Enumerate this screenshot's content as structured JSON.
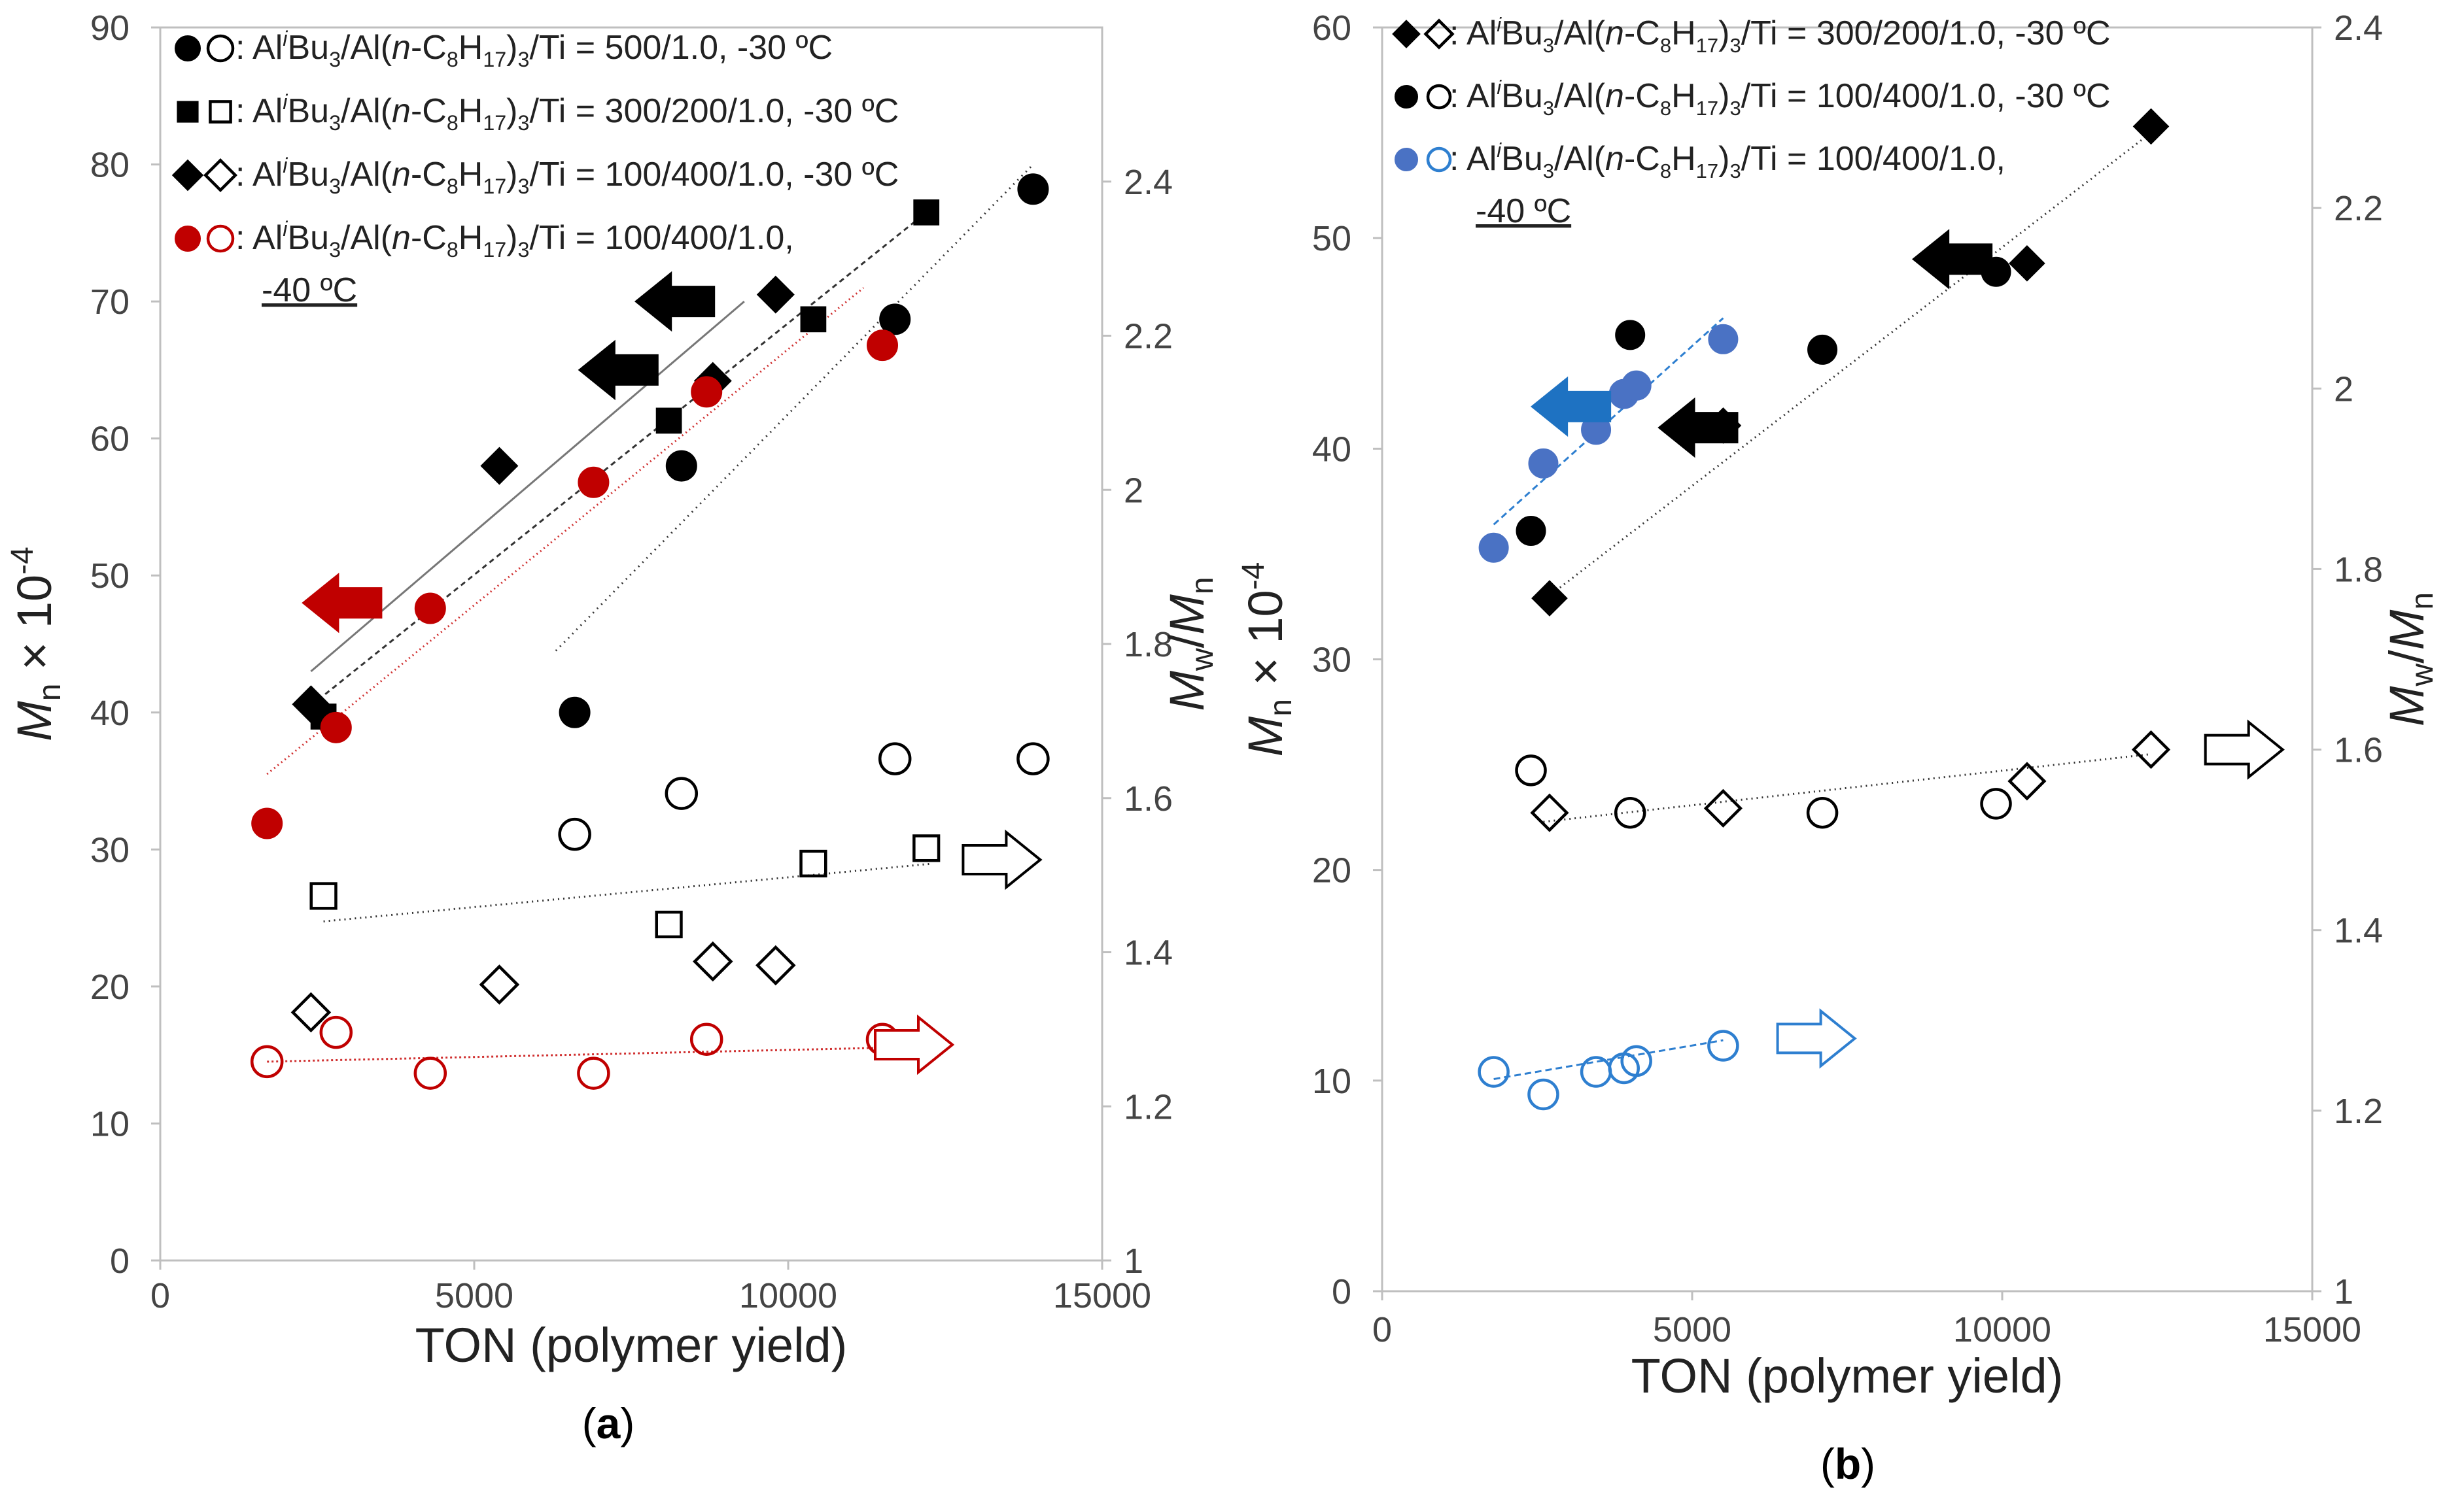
{
  "chart_data": [
    {
      "panel": "(a)",
      "type": "scatter",
      "panel_label": "(a)",
      "xlabel": "TON (polymer yield)",
      "ylabel_left": "M_n × 10^-4",
      "ylabel_right": "M_w/M_n",
      "xlim": [
        0,
        15000
      ],
      "ylim_left": [
        0,
        90
      ],
      "ylim_right": [
        1,
        2.6
      ],
      "x_ticks": [
        "0",
        "5000",
        "10000",
        "15000"
      ],
      "y_left_ticks": [
        "0",
        "10",
        "20",
        "30",
        "40",
        "50",
        "60",
        "70",
        "80",
        "90"
      ],
      "y_right_ticks": [
        "1",
        "1.2",
        "1.4",
        "1.6",
        "1.8",
        "2",
        "2.2",
        "2.4"
      ],
      "legend": [
        {
          "name": "circle-black",
          "symbols": "●○",
          "text": ": AliBu3/Al(n-C8H17)3/Ti = 500/1.0,  -30 ºC"
        },
        {
          "name": "square-black",
          "symbols": "■□",
          "text": ": AliBu3/Al(n-C8H17)3/Ti = 300/200/1.0,  -30 ºC"
        },
        {
          "name": "diamond-black",
          "symbols": "◆◇",
          "text": ": AliBu3/Al(n-C8H17)3/Ti = 100/400/1.0,  -30 ºC"
        },
        {
          "name": "circle-red",
          "symbols": "●○",
          "text": ": AliBu3/Al(n-C8H17)3/Ti = 100/400/1.0,",
          "text2": "-40 ºC"
        }
      ],
      "series": [
        {
          "name": "Mn 500/1.0 -30C",
          "axis": "left",
          "marker": "circle",
          "fill": "#000000",
          "stroke": "#000000",
          "x": [
            6600,
            8300,
            11700,
            13900
          ],
          "y": [
            40.0,
            58.0,
            68.7,
            78.2
          ],
          "trend": {
            "x": [
              6300,
              13900
            ],
            "y": [
              44.5,
              80.0
            ],
            "dash": "2,7",
            "color": "#333333"
          }
        },
        {
          "name": "Mn 300/200/1.0 -30C",
          "axis": "left",
          "marker": "square",
          "fill": "#000000",
          "stroke": "#000000",
          "x": [
            2600,
            8100,
            10400,
            12200
          ],
          "y": [
            39.7,
            61.3,
            68.7,
            76.5
          ],
          "trend": {
            "x": [
              2400,
              12200
            ],
            "y": [
              40.5,
              76.5
            ],
            "dash": "8,6",
            "color": "#333333"
          }
        },
        {
          "name": "Mn 100/400/1.0 -30C",
          "axis": "left",
          "marker": "diamond",
          "fill": "#000000",
          "stroke": "#000000",
          "x": [
            2400,
            5400,
            8800,
            9800
          ],
          "y": [
            40.6,
            58.0,
            64.2,
            70.5
          ],
          "trend": {
            "x": [
              2400,
              9300
            ],
            "y": [
              43.0,
              70.0
            ],
            "dash": "",
            "color": "#777777"
          }
        },
        {
          "name": "Mn 100/400/1.0 -40C",
          "axis": "left",
          "marker": "circle",
          "fill": "#c00000",
          "stroke": "#c00000",
          "x": [
            1700,
            2800,
            4300,
            6900,
            8700,
            11500
          ],
          "y": [
            31.9,
            38.9,
            47.6,
            56.8,
            63.4,
            66.8
          ],
          "trend": {
            "x": [
              1700,
              11200
            ],
            "y": [
              35.5,
              71.0
            ],
            "dash": "2,5",
            "color": "#d03030"
          }
        },
        {
          "name": "PDI 500/1.0 -30C",
          "axis": "right",
          "marker": "circle",
          "fill": "none",
          "stroke": "#000000",
          "x": [
            6600,
            8300,
            11700,
            13900
          ],
          "y": [
            1.553,
            1.606,
            1.651,
            1.651
          ]
        },
        {
          "name": "PDI 300/200/1.0 -30C",
          "axis": "right",
          "marker": "square",
          "fill": "none",
          "stroke": "#000000",
          "x": [
            2600,
            8100,
            10400,
            12200
          ],
          "y": [
            1.473,
            1.436,
            1.515,
            1.535
          ],
          "trend": {
            "x": [
              2600,
              12300
            ],
            "y": [
              1.44,
              1.515
            ],
            "dash": "2,6",
            "color": "#333333"
          }
        },
        {
          "name": "PDI 100/400/1.0 -30C",
          "axis": "right",
          "marker": "diamond",
          "fill": "none",
          "stroke": "#000000",
          "x": [
            2400,
            5400,
            8800,
            9800
          ],
          "y": [
            1.322,
            1.358,
            1.388,
            1.383
          ]
        },
        {
          "name": "PDI 100/400/1.0 -40C",
          "axis": "right",
          "marker": "circle",
          "fill": "none",
          "stroke": "#c00000",
          "x": [
            1700,
            2800,
            4300,
            6900,
            8700,
            11500
          ],
          "y": [
            1.258,
            1.296,
            1.243,
            1.243,
            1.287,
            1.287
          ],
          "trend": {
            "x": [
              1700,
              11500
            ],
            "y": [
              1.258,
              1.276
            ],
            "dash": "3,4",
            "color": "#d03030"
          }
        }
      ],
      "arrows": [
        {
          "dir": "left",
          "x": 2900,
          "y": 48.0,
          "axis": "left",
          "fill": "#c00000",
          "stroke": "#c00000"
        },
        {
          "dir": "left",
          "x": 7300,
          "y": 65.0,
          "axis": "left",
          "fill": "#000000",
          "stroke": "#000000"
        },
        {
          "dir": "left",
          "x": 8200,
          "y": 70.0,
          "axis": "left",
          "fill": "#000000",
          "stroke": "#000000"
        },
        {
          "dir": "right",
          "x": 13400,
          "y": 1.52,
          "axis": "right",
          "fill": "#ffffff",
          "stroke": "#000000"
        },
        {
          "dir": "right",
          "x": 12000,
          "y": 1.28,
          "axis": "right",
          "fill": "#ffffff",
          "stroke": "#c00000"
        }
      ]
    },
    {
      "panel": "(b)",
      "type": "scatter",
      "panel_label": "(b)",
      "xlabel": "TON (polymer yield)",
      "ylabel_left": "M_n × 10^-4",
      "ylabel_right": "M_w/M_n",
      "xlim": [
        0,
        15000
      ],
      "ylim_left": [
        0,
        60
      ],
      "ylim_right": [
        1,
        2.4
      ],
      "x_ticks": [
        "0",
        "5000",
        "10000",
        "15000"
      ],
      "y_left_ticks": [
        "0",
        "10",
        "20",
        "30",
        "40",
        "50",
        "60"
      ],
      "y_right_ticks": [
        "1",
        "1.2",
        "1.4",
        "1.6",
        "1.8",
        "2",
        "2.2",
        "2.4"
      ],
      "legend": [
        {
          "name": "diamond-black",
          "symbols": "◆◇",
          "text": ": AliBu3/Al(n-C8H17)3/Ti = 300/200/1.0,  -30 ºC"
        },
        {
          "name": "circle-black",
          "symbols": "●○",
          "text": ": AliBu3/Al(n-C8H17)3/Ti = 100/400/1.0,  -30 ºC"
        },
        {
          "name": "circle-blue",
          "symbols": "●○",
          "text": ": AliBu3/Al(n-C8H17)3/Ti = 100/400/1.0,",
          "text2": "-40 ºC"
        }
      ],
      "series": [
        {
          "name": "Mn 300/200/1.0 -30C",
          "axis": "left",
          "marker": "diamond",
          "fill": "#000000",
          "stroke": "#000000",
          "x": [
            2700,
            5500,
            10400,
            12400
          ],
          "y": [
            32.9,
            41.1,
            48.8,
            55.3
          ],
          "trend": {
            "x": [
              2600,
              12400
            ],
            "y": [
              32.8,
              55.0
            ],
            "dash": "2,6",
            "color": "#333333"
          }
        },
        {
          "name": "Mn 100/400/1.0 -30C",
          "axis": "left",
          "marker": "circle",
          "fill": "#000000",
          "stroke": "#000000",
          "x": [
            2400,
            4000,
            7100,
            9900
          ],
          "y": [
            36.1,
            45.4,
            44.7,
            48.4
          ]
        },
        {
          "name": "Mn 100/400/1.0 -40C",
          "axis": "left",
          "marker": "circle",
          "fill": "#4a72c4",
          "stroke": "#4a72c4",
          "x": [
            1800,
            2600,
            3450,
            3900,
            4100,
            5500
          ],
          "y": [
            35.3,
            39.3,
            40.9,
            42.6,
            43.0,
            45.2
          ],
          "trend": {
            "x": [
              1800,
              5500
            ],
            "y": [
              36.4,
              46.2
            ],
            "dash": "10,6",
            "color": "#2e7fd0"
          }
        },
        {
          "name": "PDI 300/200/1.0 -30C",
          "axis": "right",
          "marker": "diamond",
          "fill": "none",
          "stroke": "#000000",
          "x": [
            2700,
            5500,
            10400,
            12400
          ],
          "y": [
            1.53,
            1.535,
            1.565,
            1.6
          ]
        },
        {
          "name": "PDI 100/400/1.0 -30C",
          "axis": "right",
          "marker": "circle",
          "fill": "none",
          "stroke": "#000000",
          "x": [
            2400,
            4000,
            7100,
            9900
          ],
          "y": [
            1.577,
            1.53,
            1.53,
            1.54
          ],
          "trend": {
            "x": [
              2600,
              12400
            ],
            "y": [
              1.52,
              1.595
            ],
            "dash": "2,6",
            "color": "#333333"
          }
        },
        {
          "name": "PDI 100/400/1.0 -40C",
          "axis": "right",
          "marker": "circle",
          "fill": "none",
          "stroke": "#2e7fd0",
          "x": [
            1800,
            2600,
            3450,
            3900,
            4100,
            5500
          ],
          "y": [
            1.243,
            1.218,
            1.243,
            1.247,
            1.255,
            1.272
          ],
          "trend": {
            "x": [
              1800,
              5500
            ],
            "y": [
              1.235,
              1.278
            ],
            "dash": "10,6",
            "color": "#2e7fd0"
          }
        }
      ],
      "arrows": [
        {
          "dir": "left",
          "x": 3050,
          "y": 42.0,
          "axis": "left",
          "fill": "#1e72c2",
          "stroke": "#1e72c2"
        },
        {
          "dir": "left",
          "x": 5100,
          "y": 41.0,
          "axis": "left",
          "fill": "#000000",
          "stroke": "#000000"
        },
        {
          "dir": "left",
          "x": 9200,
          "y": 49.0,
          "axis": "left",
          "fill": "#000000",
          "stroke": "#000000"
        },
        {
          "dir": "right",
          "x": 13900,
          "y": 1.6,
          "axis": "right",
          "fill": "#ffffff",
          "stroke": "#000000"
        },
        {
          "dir": "right",
          "x": 7000,
          "y": 1.28,
          "axis": "right",
          "fill": "#ffffff",
          "stroke": "#2e7fd0"
        }
      ]
    }
  ]
}
